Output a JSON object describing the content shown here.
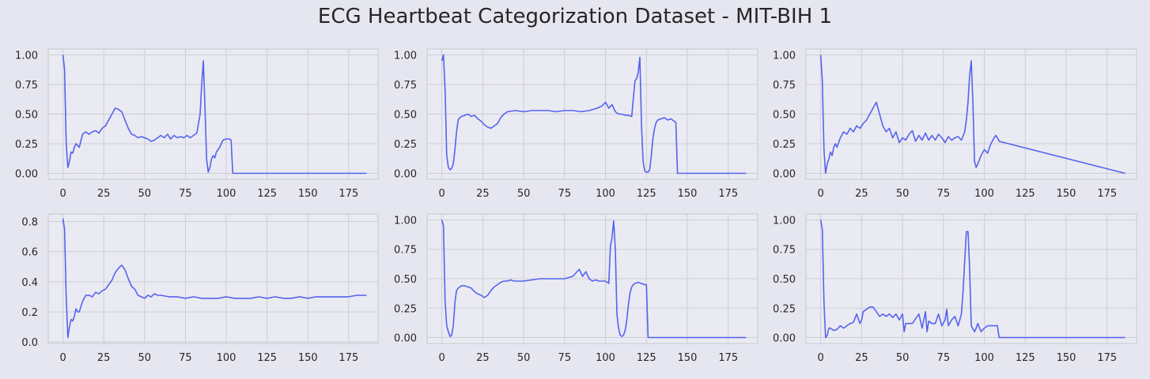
{
  "figure": {
    "title": "ECG Heartbeat Categorization Dataset - MIT-BIH 1",
    "line_color": "#5563ee",
    "axes_bg": "#eaeaf2",
    "grid_color": "#cdcdd4"
  },
  "chart_data": [
    {
      "type": "line",
      "xlim": [
        -9,
        193
      ],
      "ylim": [
        -0.05,
        1.05
      ],
      "xticks": [
        0,
        25,
        50,
        75,
        100,
        125,
        150,
        175
      ],
      "xtick_labels": [
        "0",
        "25",
        "50",
        "75",
        "100",
        "125",
        "150",
        "175"
      ],
      "yticks": [
        0,
        0.25,
        0.5,
        0.75,
        1.0
      ],
      "ytick_labels": [
        "0.00",
        "0.25",
        "0.50",
        "0.75",
        "1.00"
      ],
      "grid": true,
      "series": [
        {
          "x": [
            0,
            1,
            2,
            3,
            4,
            5,
            6,
            7,
            8,
            10,
            12,
            14,
            16,
            18,
            20,
            22,
            24,
            26,
            28,
            30,
            32,
            34,
            36,
            38,
            40,
            42,
            44,
            46,
            48,
            50,
            52,
            54,
            56,
            58,
            60,
            62,
            64,
            66,
            68,
            70,
            72,
            74,
            76,
            78,
            80,
            82,
            84,
            85,
            86,
            87,
            88,
            89,
            90,
            91,
            92,
            93,
            94,
            95,
            96,
            98,
            100,
            102,
            103,
            104,
            186
          ],
          "y": [
            1.0,
            0.88,
            0.25,
            0.05,
            0.1,
            0.18,
            0.17,
            0.22,
            0.25,
            0.22,
            0.33,
            0.35,
            0.33,
            0.35,
            0.36,
            0.34,
            0.38,
            0.4,
            0.45,
            0.5,
            0.55,
            0.54,
            0.52,
            0.45,
            0.38,
            0.33,
            0.32,
            0.3,
            0.31,
            0.3,
            0.29,
            0.27,
            0.28,
            0.3,
            0.32,
            0.3,
            0.33,
            0.29,
            0.32,
            0.3,
            0.31,
            0.3,
            0.32,
            0.3,
            0.32,
            0.34,
            0.5,
            0.75,
            0.95,
            0.55,
            0.12,
            0.01,
            0.05,
            0.12,
            0.15,
            0.13,
            0.18,
            0.2,
            0.22,
            0.28,
            0.29,
            0.29,
            0.28,
            0.0,
            0.0
          ]
        }
      ]
    },
    {
      "type": "line",
      "xlim": [
        -9,
        193
      ],
      "ylim": [
        -0.05,
        1.05
      ],
      "xticks": [
        0,
        25,
        50,
        75,
        100,
        125,
        150,
        175
      ],
      "xtick_labels": [
        "0",
        "25",
        "50",
        "75",
        "100",
        "125",
        "150",
        "175"
      ],
      "yticks": [
        0,
        0.25,
        0.5,
        0.75,
        1.0
      ],
      "ytick_labels": [
        "0.00",
        "0.25",
        "0.50",
        "0.75",
        "1.00"
      ],
      "grid": true,
      "series": [
        {
          "x": [
            0,
            1,
            2,
            3,
            4,
            5,
            6,
            7,
            8,
            9,
            10,
            11,
            12,
            14,
            16,
            18,
            20,
            22,
            24,
            26,
            28,
            30,
            32,
            34,
            36,
            38,
            40,
            45,
            50,
            55,
            60,
            65,
            70,
            75,
            80,
            85,
            90,
            95,
            98,
            100,
            102,
            104,
            106,
            108,
            110,
            112,
            114,
            116,
            118,
            119,
            120,
            121,
            122,
            123,
            124,
            125,
            126,
            127,
            128,
            129,
            130,
            131,
            132,
            134,
            136,
            138,
            140,
            142,
            143,
            144,
            186
          ],
          "y": [
            0.95,
            1.0,
            0.7,
            0.15,
            0.05,
            0.03,
            0.04,
            0.08,
            0.2,
            0.35,
            0.45,
            0.47,
            0.48,
            0.49,
            0.5,
            0.48,
            0.49,
            0.46,
            0.44,
            0.41,
            0.39,
            0.38,
            0.4,
            0.42,
            0.47,
            0.5,
            0.52,
            0.53,
            0.52,
            0.53,
            0.53,
            0.53,
            0.52,
            0.53,
            0.53,
            0.52,
            0.53,
            0.55,
            0.57,
            0.6,
            0.55,
            0.58,
            0.52,
            0.5,
            0.5,
            0.49,
            0.49,
            0.48,
            0.78,
            0.8,
            0.85,
            0.98,
            0.4,
            0.1,
            0.02,
            0.01,
            0.01,
            0.03,
            0.15,
            0.3,
            0.38,
            0.43,
            0.45,
            0.46,
            0.47,
            0.45,
            0.46,
            0.44,
            0.43,
            0.0,
            0.0
          ]
        }
      ]
    },
    {
      "type": "line",
      "xlim": [
        -9,
        193
      ],
      "ylim": [
        -0.05,
        1.05
      ],
      "xticks": [
        0,
        25,
        50,
        75,
        100,
        125,
        150,
        175
      ],
      "xtick_labels": [
        "0",
        "25",
        "50",
        "75",
        "100",
        "125",
        "150",
        "175"
      ],
      "yticks": [
        0,
        0.25,
        0.5,
        0.75,
        1.0
      ],
      "ytick_labels": [
        "0.00",
        "0.25",
        "0.50",
        "0.75",
        "1.00"
      ],
      "grid": true,
      "series": [
        {
          "x": [
            0,
            1,
            2,
            3,
            4,
            5,
            6,
            7,
            8,
            9,
            10,
            12,
            14,
            16,
            18,
            20,
            22,
            24,
            26,
            28,
            30,
            32,
            34,
            36,
            38,
            40,
            42,
            44,
            46,
            48,
            50,
            52,
            54,
            56,
            58,
            60,
            62,
            64,
            66,
            68,
            70,
            72,
            74,
            76,
            78,
            80,
            82,
            84,
            86,
            88,
            89,
            90,
            91,
            92,
            93,
            94,
            95,
            96,
            98,
            100,
            102,
            104,
            106,
            107,
            108,
            109,
            186
          ],
          "y": [
            1.0,
            0.78,
            0.2,
            0.0,
            0.08,
            0.12,
            0.18,
            0.15,
            0.22,
            0.25,
            0.22,
            0.3,
            0.35,
            0.33,
            0.38,
            0.35,
            0.4,
            0.38,
            0.42,
            0.45,
            0.5,
            0.55,
            0.6,
            0.5,
            0.4,
            0.35,
            0.38,
            0.3,
            0.35,
            0.26,
            0.3,
            0.28,
            0.33,
            0.36,
            0.27,
            0.32,
            0.28,
            0.34,
            0.28,
            0.32,
            0.28,
            0.33,
            0.3,
            0.26,
            0.31,
            0.28,
            0.3,
            0.31,
            0.28,
            0.35,
            0.45,
            0.6,
            0.82,
            0.95,
            0.6,
            0.1,
            0.05,
            0.08,
            0.15,
            0.2,
            0.17,
            0.25,
            0.3,
            0.32,
            0.3,
            0.27,
            0.0
          ]
        }
      ]
    },
    {
      "type": "line",
      "xlim": [
        -9,
        193
      ],
      "ylim": [
        -0.01,
        0.85
      ],
      "xticks": [
        0,
        25,
        50,
        75,
        100,
        125,
        150,
        175
      ],
      "xtick_labels": [
        "0",
        "25",
        "50",
        "75",
        "100",
        "125",
        "150",
        "175"
      ],
      "yticks": [
        0,
        0.2,
        0.4,
        0.6,
        0.8
      ],
      "ytick_labels": [
        "0.0",
        "0.2",
        "0.4",
        "0.6",
        "0.8"
      ],
      "grid": true,
      "series": [
        {
          "x": [
            0,
            1,
            2,
            3,
            4,
            5,
            6,
            7,
            8,
            9,
            10,
            12,
            14,
            16,
            18,
            20,
            22,
            24,
            26,
            28,
            30,
            32,
            34,
            36,
            38,
            40,
            42,
            44,
            46,
            48,
            50,
            52,
            54,
            56,
            58,
            60,
            65,
            70,
            75,
            80,
            85,
            90,
            95,
            100,
            105,
            110,
            115,
            120,
            125,
            130,
            135,
            140,
            145,
            150,
            155,
            160,
            165,
            170,
            175,
            180,
            183,
            186
          ],
          "y": [
            0.82,
            0.75,
            0.3,
            0.03,
            0.1,
            0.15,
            0.14,
            0.17,
            0.22,
            0.2,
            0.2,
            0.27,
            0.31,
            0.31,
            0.3,
            0.33,
            0.32,
            0.34,
            0.35,
            0.38,
            0.41,
            0.46,
            0.49,
            0.51,
            0.48,
            0.42,
            0.37,
            0.35,
            0.31,
            0.3,
            0.29,
            0.31,
            0.3,
            0.32,
            0.31,
            0.31,
            0.3,
            0.3,
            0.29,
            0.3,
            0.29,
            0.29,
            0.29,
            0.3,
            0.29,
            0.29,
            0.29,
            0.3,
            0.29,
            0.3,
            0.29,
            0.29,
            0.3,
            0.29,
            0.3,
            0.3,
            0.3,
            0.3,
            0.3,
            0.31,
            0.31,
            0.31
          ]
        }
      ]
    },
    {
      "type": "line",
      "xlim": [
        -9,
        193
      ],
      "ylim": [
        -0.05,
        1.05
      ],
      "xticks": [
        0,
        25,
        50,
        75,
        100,
        125,
        150,
        175
      ],
      "xtick_labels": [
        "0",
        "25",
        "50",
        "75",
        "100",
        "125",
        "150",
        "175"
      ],
      "yticks": [
        0,
        0.25,
        0.5,
        0.75,
        1.0
      ],
      "ytick_labels": [
        "0.00",
        "0.25",
        "0.50",
        "0.75",
        "1.00"
      ],
      "grid": true,
      "series": [
        {
          "x": [
            0,
            1,
            2,
            3,
            4,
            5,
            6,
            7,
            8,
            9,
            10,
            12,
            14,
            16,
            18,
            20,
            22,
            24,
            26,
            28,
            30,
            32,
            34,
            36,
            38,
            40,
            42,
            44,
            50,
            55,
            60,
            65,
            70,
            75,
            80,
            82,
            84,
            86,
            88,
            90,
            92,
            94,
            96,
            98,
            100,
            102,
            103,
            104,
            105,
            106,
            107,
            108,
            109,
            110,
            111,
            112,
            113,
            114,
            115,
            116,
            117,
            118,
            120,
            122,
            124,
            125,
            126,
            127,
            186
          ],
          "y": [
            1.0,
            0.95,
            0.3,
            0.1,
            0.05,
            0.01,
            0.02,
            0.1,
            0.3,
            0.4,
            0.42,
            0.44,
            0.44,
            0.43,
            0.42,
            0.39,
            0.37,
            0.36,
            0.34,
            0.36,
            0.4,
            0.43,
            0.45,
            0.47,
            0.48,
            0.48,
            0.49,
            0.48,
            0.48,
            0.49,
            0.5,
            0.5,
            0.5,
            0.5,
            0.52,
            0.55,
            0.58,
            0.52,
            0.56,
            0.5,
            0.48,
            0.49,
            0.48,
            0.48,
            0.48,
            0.46,
            0.78,
            0.85,
            0.99,
            0.75,
            0.2,
            0.08,
            0.02,
            0.01,
            0.02,
            0.06,
            0.15,
            0.28,
            0.38,
            0.43,
            0.45,
            0.46,
            0.47,
            0.46,
            0.45,
            0.45,
            0.0,
            0.0,
            0.0
          ]
        }
      ]
    },
    {
      "type": "line",
      "xlim": [
        -9,
        193
      ],
      "ylim": [
        -0.05,
        1.05
      ],
      "xticks": [
        0,
        25,
        50,
        75,
        100,
        125,
        150,
        175
      ],
      "xtick_labels": [
        "0",
        "25",
        "50",
        "75",
        "100",
        "125",
        "150",
        "175"
      ],
      "yticks": [
        0,
        0.25,
        0.5,
        0.75,
        1.0
      ],
      "ytick_labels": [
        "0.00",
        "0.25",
        "0.50",
        "0.75",
        "1.00"
      ],
      "grid": true,
      "series": [
        {
          "x": [
            0,
            1,
            2,
            3,
            4,
            5,
            6,
            8,
            10,
            12,
            14,
            16,
            18,
            20,
            22,
            24,
            25,
            26,
            28,
            30,
            32,
            34,
            36,
            38,
            40,
            42,
            44,
            46,
            48,
            50,
            51,
            52,
            54,
            56,
            58,
            60,
            62,
            64,
            65,
            66,
            68,
            70,
            72,
            74,
            76,
            77,
            78,
            80,
            82,
            84,
            86,
            87,
            88,
            89,
            90,
            91,
            92,
            94,
            95,
            96,
            98,
            100,
            102,
            104,
            106,
            108,
            109,
            186
          ],
          "y": [
            1.0,
            0.92,
            0.3,
            0.0,
            0.02,
            0.08,
            0.08,
            0.06,
            0.07,
            0.1,
            0.08,
            0.1,
            0.12,
            0.13,
            0.2,
            0.12,
            0.15,
            0.22,
            0.24,
            0.26,
            0.26,
            0.22,
            0.18,
            0.2,
            0.18,
            0.2,
            0.17,
            0.2,
            0.15,
            0.2,
            0.05,
            0.12,
            0.12,
            0.12,
            0.16,
            0.2,
            0.08,
            0.22,
            0.05,
            0.14,
            0.12,
            0.12,
            0.2,
            0.1,
            0.15,
            0.24,
            0.1,
            0.15,
            0.18,
            0.1,
            0.2,
            0.4,
            0.65,
            0.9,
            0.9,
            0.6,
            0.1,
            0.05,
            0.08,
            0.12,
            0.05,
            0.08,
            0.1,
            0.1,
            0.1,
            0.1,
            0.0,
            0.0
          ]
        }
      ]
    }
  ]
}
